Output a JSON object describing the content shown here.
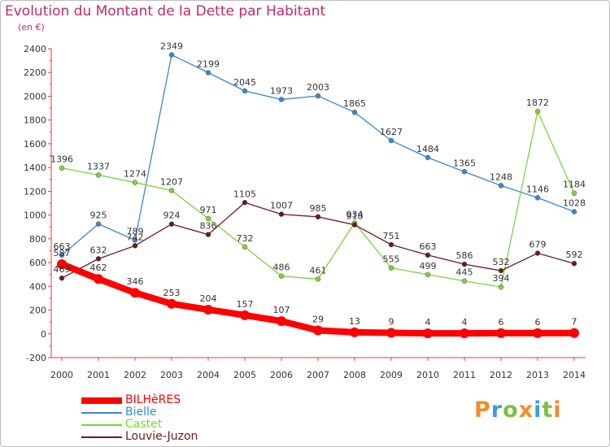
{
  "title": "Evolution du Montant de la Dette par Habitant",
  "subtitle": "(en €)",
  "logo": {
    "text": "Proxiti",
    "letters": [
      {
        "ch": "P",
        "color": "#f28c28"
      },
      {
        "ch": "r",
        "color": "#3c9be0"
      },
      {
        "ch": "o",
        "color": "#7cc242"
      },
      {
        "ch": "x",
        "color": "#f28c28"
      },
      {
        "ch": "i",
        "color": "#3c9be0"
      },
      {
        "ch": "t",
        "color": "#7cc242"
      },
      {
        "ch": "i",
        "color": "#f28c28"
      }
    ]
  },
  "chart_data": {
    "type": "line",
    "title": "Evolution du Montant de la Dette par Habitant",
    "subtitle": "(en €)",
    "xlabel": "",
    "ylabel": "",
    "x": [
      "2000",
      "2001",
      "2002",
      "2003",
      "2004",
      "2005",
      "2006",
      "2007",
      "2008",
      "2009",
      "2010",
      "2011",
      "2012",
      "2013",
      "2014"
    ],
    "ylim": [
      -200,
      2400
    ],
    "yticks": [
      -200,
      0,
      200,
      400,
      600,
      800,
      1000,
      1200,
      1400,
      1600,
      1800,
      2000,
      2200,
      2400
    ],
    "grid": false,
    "legend_position": "bottom-left",
    "series": [
      {
        "name": "BILHèRES",
        "color": "#ff0000",
        "emphasis": true,
        "values": [
          587,
          462,
          346,
          253,
          204,
          157,
          107,
          29,
          13,
          9,
          4,
          4,
          6,
          6,
          7
        ]
      },
      {
        "name": "Bielle",
        "color": "#3b88c9",
        "values": [
          663,
          925,
          789,
          2349,
          2199,
          2045,
          1973,
          2003,
          1865,
          1627,
          1484,
          1365,
          1248,
          1146,
          1028
        ]
      },
      {
        "name": "Castet",
        "color": "#7ed13e",
        "values": [
          1396,
          1337,
          1274,
          1207,
          971,
          732,
          486,
          461,
          934,
          555,
          499,
          445,
          394,
          1872,
          1184
        ]
      },
      {
        "name": "Louvie-Juzon",
        "color": "#6b1a1a",
        "values": [
          469,
          632,
          742,
          924,
          836,
          1105,
          1007,
          985,
          918,
          751,
          663,
          586,
          532,
          679,
          592
        ]
      }
    ]
  }
}
